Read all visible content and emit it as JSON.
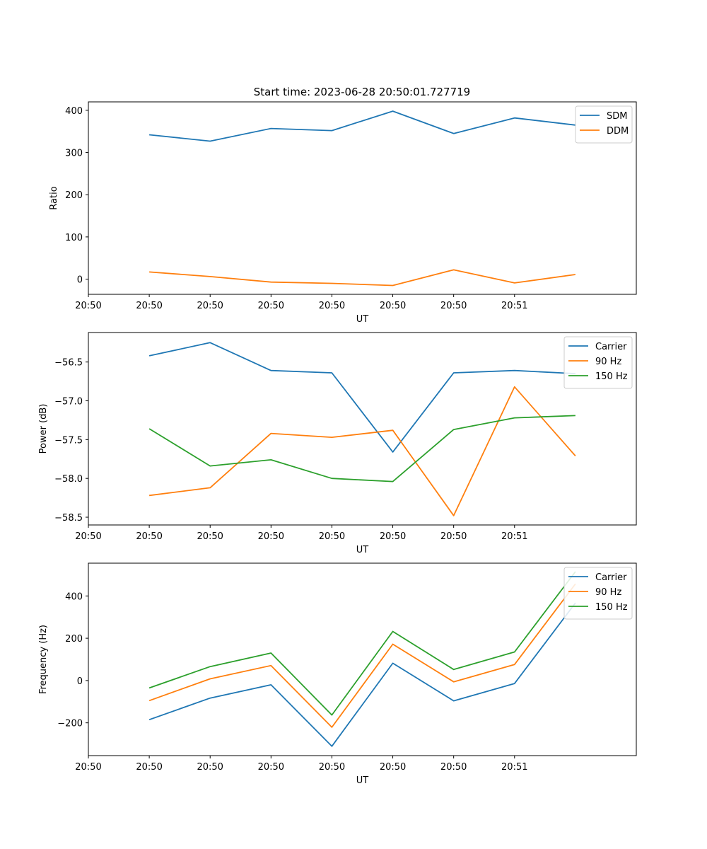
{
  "figure": {
    "title": "Start time: 2023-06-28 20:50:01.727719"
  },
  "chart_data": [
    {
      "type": "line",
      "title": "Start time: 2023-06-28 20:50:01.727719",
      "xlabel": "UT",
      "ylabel": "Ratio",
      "x": [
        1,
        2,
        3,
        4,
        5,
        6,
        7,
        8
      ],
      "xlim": [
        0,
        9
      ],
      "x_tick_labels": [
        "20:50",
        "20:50",
        "20:50",
        "20:50",
        "20:50",
        "20:50",
        "20:50",
        "20:51"
      ],
      "ylim": [
        -36,
        420
      ],
      "y_ticks": [
        0,
        100,
        200,
        300,
        400
      ],
      "y_tick_labels": [
        "0",
        "100",
        "200",
        "300",
        "400"
      ],
      "legend_position": "top-right",
      "grid": false,
      "series": [
        {
          "name": "SDM",
          "color": "#1f77b4",
          "values": [
            342,
            327,
            357,
            352,
            398,
            345,
            382,
            365
          ]
        },
        {
          "name": "DDM",
          "color": "#ff7f0e",
          "values": [
            17,
            6,
            -7,
            -10,
            -15,
            22,
            -9,
            11
          ]
        }
      ]
    },
    {
      "type": "line",
      "xlabel": "UT",
      "ylabel": "Power (dB)",
      "x": [
        1,
        2,
        3,
        4,
        5,
        6,
        7,
        8
      ],
      "xlim": [
        0,
        9
      ],
      "x_tick_labels": [
        "20:50",
        "20:50",
        "20:50",
        "20:50",
        "20:50",
        "20:50",
        "20:50",
        "20:51"
      ],
      "ylim": [
        -58.6,
        -56.12
      ],
      "y_ticks": [
        -58.5,
        -58.0,
        -57.5,
        -57.0,
        -56.5
      ],
      "y_tick_labels": [
        "−58.5",
        "−58.0",
        "−57.5",
        "−57.0",
        "−56.5"
      ],
      "legend_position": "top-right",
      "grid": false,
      "series": [
        {
          "name": "Carrier",
          "color": "#1f77b4",
          "values": [
            -56.42,
            -56.25,
            -56.61,
            -56.64,
            -57.66,
            -56.64,
            -56.61,
            -56.65
          ]
        },
        {
          "name": "90 Hz",
          "color": "#ff7f0e",
          "values": [
            -58.22,
            -58.12,
            -57.42,
            -57.47,
            -57.38,
            -58.48,
            -56.82,
            -57.71
          ]
        },
        {
          "name": "150 Hz",
          "color": "#2ca02c",
          "values": [
            -57.36,
            -57.84,
            -57.76,
            -58.0,
            -58.04,
            -57.37,
            -57.22,
            -57.19
          ]
        }
      ]
    },
    {
      "type": "line",
      "xlabel": "UT",
      "ylabel": "Frequency (Hz)",
      "x": [
        1,
        2,
        3,
        4,
        5,
        6,
        7,
        8
      ],
      "xlim": [
        0,
        9
      ],
      "x_tick_labels": [
        "20:50",
        "20:50",
        "20:50",
        "20:50",
        "20:50",
        "20:50",
        "20:50",
        "20:51"
      ],
      "ylim": [
        -355,
        555
      ],
      "y_ticks": [
        -200,
        0,
        200,
        400
      ],
      "y_tick_labels": [
        "−200",
        "0",
        "200",
        "400"
      ],
      "legend_position": "top-right",
      "grid": false,
      "series": [
        {
          "name": "Carrier",
          "color": "#1f77b4",
          "values": [
            -185,
            -83,
            -20,
            -311,
            82,
            -96,
            -14,
            367
          ]
        },
        {
          "name": "90 Hz",
          "color": "#ff7f0e",
          "values": [
            -95,
            8,
            71,
            -221,
            172,
            -6,
            76,
            457
          ]
        },
        {
          "name": "150 Hz",
          "color": "#2ca02c",
          "values": [
            -35,
            66,
            130,
            -163,
            232,
            52,
            135,
            515
          ]
        }
      ]
    }
  ]
}
